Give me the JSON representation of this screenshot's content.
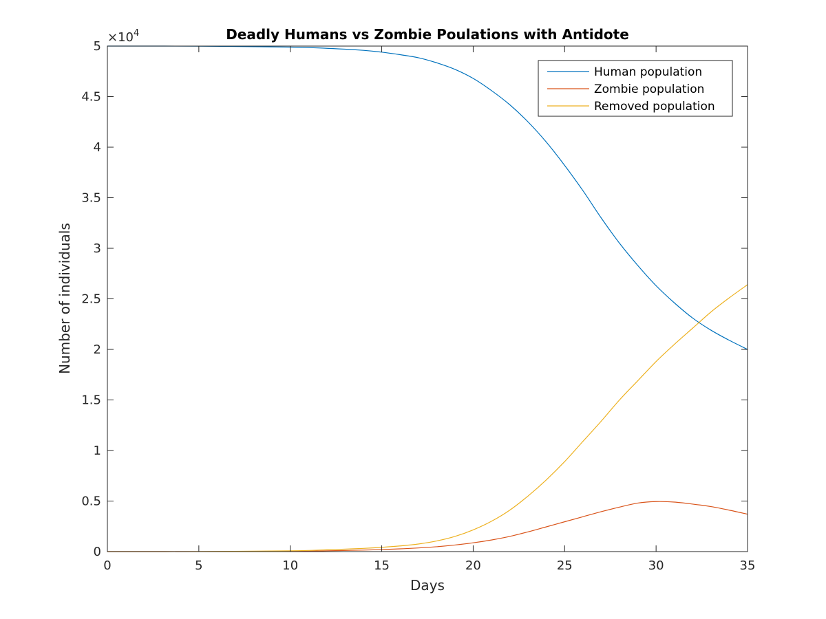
{
  "chart_data": {
    "type": "line",
    "title": "Deadly Humans vs Zombie Poulations with Antidote",
    "xlabel": "Days",
    "ylabel": "Number of individuals",
    "xlim": [
      0,
      35
    ],
    "ylim": [
      0,
      50000
    ],
    "x_ticks": [
      0,
      5,
      10,
      15,
      20,
      25,
      30,
      35
    ],
    "x_tick_labels": [
      "0",
      "5",
      "10",
      "15",
      "20",
      "25",
      "30",
      "35"
    ],
    "y_ticks": [
      0,
      5000,
      10000,
      15000,
      20000,
      25000,
      30000,
      35000,
      40000,
      45000,
      50000
    ],
    "y_tick_labels": [
      "0",
      "0.5",
      "1",
      "1.5",
      "2",
      "2.5",
      "3",
      "3.5",
      "4",
      "4.5",
      "5"
    ],
    "y_multiplier": {
      "base": "×10",
      "exponent": "4"
    },
    "grid": false,
    "legend_position": "top-right",
    "x": [
      0,
      5,
      10,
      12,
      14,
      15,
      16,
      17,
      18,
      19,
      20,
      21,
      22,
      23,
      24,
      25,
      26,
      27,
      28,
      29,
      30,
      31,
      32,
      33,
      34,
      35
    ],
    "series": [
      {
        "name": "Human population",
        "color": "#0072BD",
        "values": [
          50000,
          49990,
          49900,
          49780,
          49580,
          49400,
          49150,
          48850,
          48350,
          47700,
          46800,
          45600,
          44200,
          42500,
          40500,
          38200,
          35700,
          33000,
          30500,
          28300,
          26300,
          24600,
          23100,
          21900,
          20900,
          20000
        ]
      },
      {
        "name": "Zombie population",
        "color": "#D95319",
        "values": [
          0,
          5,
          30,
          80,
          150,
          200,
          270,
          360,
          480,
          650,
          870,
          1150,
          1500,
          1950,
          2450,
          2950,
          3450,
          3950,
          4400,
          4800,
          4950,
          4900,
          4700,
          4450,
          4100,
          3700
        ]
      },
      {
        "name": "Removed population",
        "color": "#EDB120",
        "values": [
          0,
          10,
          80,
          180,
          320,
          420,
          560,
          750,
          1050,
          1500,
          2150,
          3000,
          4100,
          5500,
          7100,
          8900,
          10900,
          12900,
          15000,
          16900,
          18800,
          20500,
          22100,
          23700,
          25100,
          26400
        ]
      }
    ]
  }
}
